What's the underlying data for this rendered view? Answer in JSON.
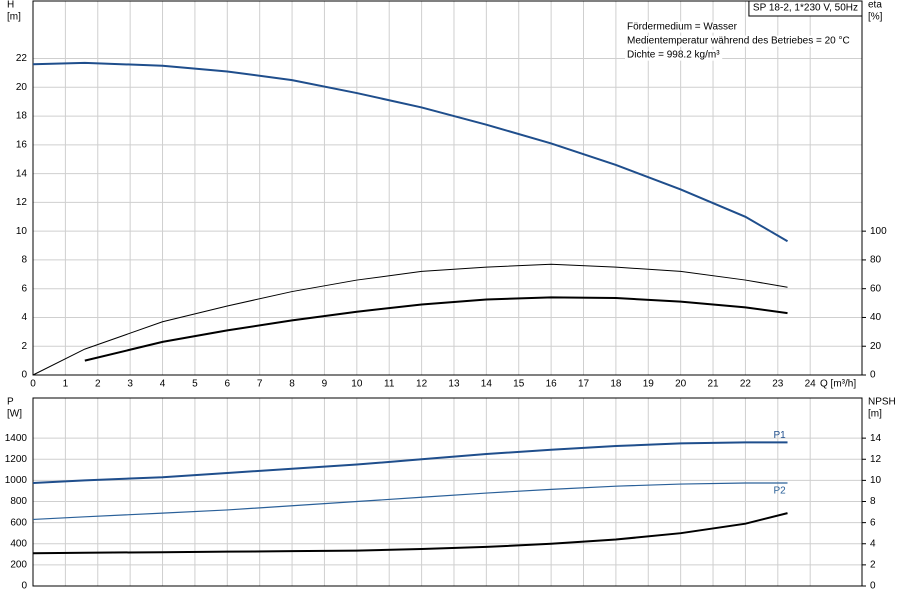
{
  "chart_data": [
    {
      "type": "line",
      "title": "SP 18-2, 1*230 V, 50Hz",
      "annotations": [
        "Fördermedium = Wasser",
        "Medientemperatur während des Betriebes = 20 °C",
        "Dichte = 998.2 kg/m³"
      ],
      "xlabel": "Q [m³/h]",
      "ylabel": [
        "H",
        "[m]"
      ],
      "y2label": [
        "eta",
        "[%]"
      ],
      "x": [
        0,
        1.6,
        4,
        6,
        8,
        10,
        12,
        14,
        16,
        18,
        20,
        22,
        23.3
      ],
      "xlim": [
        0,
        25.6
      ],
      "xticks": [
        0,
        1,
        2,
        3,
        4,
        5,
        6,
        7,
        8,
        9,
        10,
        11,
        12,
        13,
        14,
        15,
        16,
        17,
        18,
        19,
        20,
        21,
        22,
        23,
        24
      ],
      "ylim": [
        0,
        26
      ],
      "yticks": [
        0,
        2,
        4,
        6,
        8,
        10,
        12,
        14,
        16,
        18,
        20,
        22
      ],
      "y2lim": [
        0,
        260
      ],
      "y2ticks": [
        0,
        20,
        40,
        60,
        80,
        100
      ],
      "grid": true,
      "series": [
        {
          "color": "#1f4e8c",
          "line_width": 2,
          "values": [
            21.6,
            21.7,
            21.5,
            21.1,
            20.5,
            19.6,
            18.6,
            17.4,
            16.1,
            14.6,
            12.9,
            11.0,
            9.3
          ]
        },
        {
          "color": "#000000",
          "line_width": 1,
          "axis": "y2",
          "values": [
            0,
            18,
            37,
            48,
            58,
            66,
            72,
            75,
            77,
            75,
            72,
            66,
            61
          ]
        },
        {
          "color": "#000000",
          "line_width": 2,
          "axis": "y2",
          "values": [
            null,
            10,
            23,
            31,
            38,
            44,
            49,
            52.5,
            54,
            53.5,
            51,
            47,
            43
          ]
        }
      ]
    },
    {
      "type": "line",
      "ylabel": [
        "P",
        "[W]"
      ],
      "y2label": [
        "NPSH",
        "[m]"
      ],
      "x": [
        0,
        1.6,
        4,
        6,
        8,
        10,
        12,
        14,
        16,
        18,
        20,
        22,
        23.3
      ],
      "xlim": [
        0,
        25.6
      ],
      "ylim": [
        0,
        1780
      ],
      "yticks": [
        0,
        200,
        400,
        600,
        800,
        1000,
        1200,
        1400
      ],
      "y2lim": [
        0,
        17.8
      ],
      "y2ticks": [
        0,
        2,
        4,
        6,
        8,
        10,
        12,
        14
      ],
      "grid": true,
      "series": [
        {
          "name": "P1",
          "color": "#1f4e8c",
          "line_width": 2,
          "values": [
            975,
            1000,
            1030,
            1070,
            1110,
            1150,
            1200,
            1250,
            1290,
            1325,
            1350,
            1360,
            1360
          ]
        },
        {
          "name": "P2",
          "color": "#2a6099",
          "line_width": 1.2,
          "values": [
            630,
            655,
            690,
            720,
            760,
            800,
            840,
            880,
            915,
            945,
            965,
            975,
            975
          ]
        },
        {
          "color": "#000000",
          "line_width": 2,
          "axis": "y2",
          "values": [
            3.1,
            3.15,
            3.2,
            3.25,
            3.3,
            3.35,
            3.5,
            3.7,
            4.0,
            4.4,
            5.0,
            5.9,
            6.9
          ]
        }
      ]
    }
  ]
}
